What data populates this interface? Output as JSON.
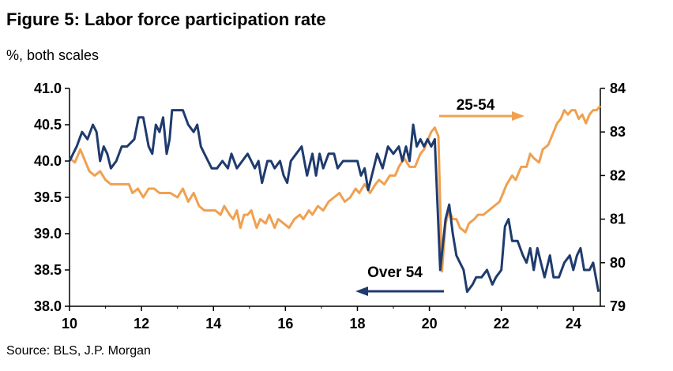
{
  "chart_data": {
    "type": "line",
    "title": "Figure 5: Labor force participation rate",
    "subtitle": "%, both scales",
    "source": "Source: BLS, J.P. Morgan",
    "x_ticks": [
      "10",
      "12",
      "14",
      "16",
      "18",
      "20",
      "22",
      "24"
    ],
    "x_range": [
      2010,
      2024.75
    ],
    "left_axis": {
      "range": [
        38.0,
        41.0
      ],
      "ticks": [
        "38.0",
        "38.5",
        "39.0",
        "39.5",
        "40.0",
        "40.5",
        "41.0"
      ]
    },
    "right_axis": {
      "range": [
        79,
        84
      ],
      "ticks": [
        "79",
        "80",
        "81",
        "82",
        "83",
        "84"
      ]
    },
    "grid": false,
    "annotations": [
      {
        "text": "25-54",
        "arrow": "right",
        "series": "25-54"
      },
      {
        "text": "Over 54",
        "arrow": "left",
        "series": "Over 54"
      }
    ],
    "series": [
      {
        "name": "Over 54",
        "axis": "left",
        "color": "#1f3b6e",
        "points": [
          [
            2010.0,
            40.0
          ],
          [
            2010.2,
            40.2
          ],
          [
            2010.35,
            40.4
          ],
          [
            2010.5,
            40.3
          ],
          [
            2010.65,
            40.5
          ],
          [
            2010.75,
            40.4
          ],
          [
            2010.85,
            40.0
          ],
          [
            2010.95,
            40.2
          ],
          [
            2011.05,
            40.1
          ],
          [
            2011.15,
            39.9
          ],
          [
            2011.3,
            40.0
          ],
          [
            2011.45,
            40.2
          ],
          [
            2011.6,
            40.2
          ],
          [
            2011.8,
            40.3
          ],
          [
            2011.92,
            40.6
          ],
          [
            2012.05,
            40.6
          ],
          [
            2012.2,
            40.2
          ],
          [
            2012.3,
            40.1
          ],
          [
            2012.4,
            40.5
          ],
          [
            2012.5,
            40.4
          ],
          [
            2012.6,
            40.6
          ],
          [
            2012.7,
            40.1
          ],
          [
            2012.78,
            40.3
          ],
          [
            2012.85,
            40.7
          ],
          [
            2013.0,
            40.7
          ],
          [
            2013.15,
            40.7
          ],
          [
            2013.3,
            40.5
          ],
          [
            2013.45,
            40.4
          ],
          [
            2013.55,
            40.5
          ],
          [
            2013.65,
            40.2
          ],
          [
            2013.75,
            40.1
          ],
          [
            2013.85,
            40.0
          ],
          [
            2013.95,
            39.9
          ],
          [
            2014.1,
            39.9
          ],
          [
            2014.25,
            40.0
          ],
          [
            2014.4,
            39.9
          ],
          [
            2014.5,
            40.1
          ],
          [
            2014.65,
            39.9
          ],
          [
            2014.8,
            40.0
          ],
          [
            2014.95,
            40.1
          ],
          [
            2015.05,
            40.0
          ],
          [
            2015.15,
            39.9
          ],
          [
            2015.25,
            40.0
          ],
          [
            2015.35,
            39.7
          ],
          [
            2015.5,
            40.0
          ],
          [
            2015.6,
            40.0
          ],
          [
            2015.7,
            39.9
          ],
          [
            2015.85,
            40.0
          ],
          [
            2015.95,
            39.8
          ],
          [
            2016.05,
            39.7
          ],
          [
            2016.15,
            40.0
          ],
          [
            2016.3,
            40.1
          ],
          [
            2016.45,
            40.2
          ],
          [
            2016.6,
            39.8
          ],
          [
            2016.75,
            40.1
          ],
          [
            2016.85,
            39.8
          ],
          [
            2016.95,
            40.1
          ],
          [
            2017.05,
            39.9
          ],
          [
            2017.2,
            40.1
          ],
          [
            2017.35,
            40.1
          ],
          [
            2017.45,
            39.9
          ],
          [
            2017.6,
            40.0
          ],
          [
            2017.75,
            40.0
          ],
          [
            2017.9,
            40.0
          ],
          [
            2018.0,
            40.0
          ],
          [
            2018.1,
            39.8
          ],
          [
            2018.2,
            39.9
          ],
          [
            2018.3,
            39.6
          ],
          [
            2018.45,
            39.9
          ],
          [
            2018.55,
            40.1
          ],
          [
            2018.7,
            39.9
          ],
          [
            2018.85,
            40.2
          ],
          [
            2019.0,
            40.1
          ],
          [
            2019.15,
            40.2
          ],
          [
            2019.25,
            40.0
          ],
          [
            2019.35,
            40.2
          ],
          [
            2019.45,
            40.0
          ],
          [
            2019.55,
            40.5
          ],
          [
            2019.65,
            40.2
          ],
          [
            2019.75,
            40.3
          ],
          [
            2019.85,
            40.2
          ],
          [
            2019.95,
            40.3
          ],
          [
            2020.05,
            40.2
          ],
          [
            2020.15,
            40.3
          ],
          [
            2020.3,
            38.5
          ],
          [
            2020.45,
            39.2
          ],
          [
            2020.55,
            39.4
          ],
          [
            2020.65,
            39.0
          ],
          [
            2020.75,
            38.7
          ],
          [
            2020.85,
            38.6
          ],
          [
            2020.95,
            38.5
          ],
          [
            2021.05,
            38.2
          ],
          [
            2021.2,
            38.3
          ],
          [
            2021.3,
            38.4
          ],
          [
            2021.45,
            38.4
          ],
          [
            2021.6,
            38.5
          ],
          [
            2021.75,
            38.3
          ],
          [
            2021.85,
            38.4
          ],
          [
            2022.0,
            38.5
          ],
          [
            2022.1,
            39.1
          ],
          [
            2022.2,
            39.2
          ],
          [
            2022.3,
            38.9
          ],
          [
            2022.45,
            38.9
          ],
          [
            2022.6,
            38.7
          ],
          [
            2022.7,
            38.6
          ],
          [
            2022.8,
            38.8
          ],
          [
            2022.9,
            38.5
          ],
          [
            2023.0,
            38.8
          ],
          [
            2023.1,
            38.6
          ],
          [
            2023.2,
            38.4
          ],
          [
            2023.35,
            38.7
          ],
          [
            2023.45,
            38.4
          ],
          [
            2023.6,
            38.4
          ],
          [
            2023.75,
            38.6
          ],
          [
            2023.9,
            38.7
          ],
          [
            2024.0,
            38.5
          ],
          [
            2024.1,
            38.7
          ],
          [
            2024.2,
            38.8
          ],
          [
            2024.3,
            38.5
          ],
          [
            2024.45,
            38.5
          ],
          [
            2024.55,
            38.6
          ],
          [
            2024.7,
            38.2
          ]
        ]
      },
      {
        "name": "25-54",
        "axis": "right",
        "color": "#f0a050",
        "points": [
          [
            2010.0,
            82.4
          ],
          [
            2010.15,
            82.3
          ],
          [
            2010.3,
            82.6
          ],
          [
            2010.45,
            82.3
          ],
          [
            2010.55,
            82.1
          ],
          [
            2010.7,
            82.0
          ],
          [
            2010.85,
            82.1
          ],
          [
            2011.0,
            81.9
          ],
          [
            2011.15,
            81.8
          ],
          [
            2011.3,
            81.8
          ],
          [
            2011.5,
            81.8
          ],
          [
            2011.65,
            81.8
          ],
          [
            2011.75,
            81.6
          ],
          [
            2011.9,
            81.7
          ],
          [
            2012.05,
            81.5
          ],
          [
            2012.2,
            81.7
          ],
          [
            2012.35,
            81.7
          ],
          [
            2012.5,
            81.6
          ],
          [
            2012.65,
            81.6
          ],
          [
            2012.8,
            81.6
          ],
          [
            2013.0,
            81.5
          ],
          [
            2013.15,
            81.7
          ],
          [
            2013.3,
            81.4
          ],
          [
            2013.45,
            81.6
          ],
          [
            2013.6,
            81.3
          ],
          [
            2013.75,
            81.2
          ],
          [
            2013.9,
            81.2
          ],
          [
            2014.05,
            81.2
          ],
          [
            2014.2,
            81.1
          ],
          [
            2014.3,
            81.3
          ],
          [
            2014.45,
            81.1
          ],
          [
            2014.55,
            81.0
          ],
          [
            2014.65,
            81.2
          ],
          [
            2014.75,
            80.8
          ],
          [
            2014.85,
            81.1
          ],
          [
            2014.95,
            81.1
          ],
          [
            2015.05,
            81.2
          ],
          [
            2015.2,
            80.8
          ],
          [
            2015.3,
            81.0
          ],
          [
            2015.45,
            80.9
          ],
          [
            2015.55,
            81.1
          ],
          [
            2015.7,
            80.8
          ],
          [
            2015.8,
            81.0
          ],
          [
            2015.95,
            80.9
          ],
          [
            2016.1,
            80.8
          ],
          [
            2016.25,
            81.0
          ],
          [
            2016.4,
            81.1
          ],
          [
            2016.5,
            81.0
          ],
          [
            2016.65,
            81.2
          ],
          [
            2016.75,
            81.1
          ],
          [
            2016.9,
            81.3
          ],
          [
            2017.05,
            81.2
          ],
          [
            2017.2,
            81.4
          ],
          [
            2017.35,
            81.5
          ],
          [
            2017.5,
            81.6
          ],
          [
            2017.65,
            81.4
          ],
          [
            2017.8,
            81.5
          ],
          [
            2017.95,
            81.7
          ],
          [
            2018.05,
            81.6
          ],
          [
            2018.2,
            81.8
          ],
          [
            2018.35,
            81.6
          ],
          [
            2018.5,
            81.8
          ],
          [
            2018.6,
            81.9
          ],
          [
            2018.75,
            81.8
          ],
          [
            2018.9,
            82.0
          ],
          [
            2019.05,
            82.0
          ],
          [
            2019.15,
            82.2
          ],
          [
            2019.3,
            82.4
          ],
          [
            2019.45,
            82.2
          ],
          [
            2019.6,
            82.2
          ],
          [
            2019.75,
            82.5
          ],
          [
            2019.85,
            82.6
          ],
          [
            2019.95,
            82.8
          ],
          [
            2020.05,
            83.0
          ],
          [
            2020.15,
            83.1
          ],
          [
            2020.25,
            82.9
          ],
          [
            2020.35,
            79.8
          ],
          [
            2020.45,
            80.9
          ],
          [
            2020.55,
            81.2
          ],
          [
            2020.65,
            81.0
          ],
          [
            2020.75,
            81.0
          ],
          [
            2020.85,
            80.8
          ],
          [
            2021.0,
            80.7
          ],
          [
            2021.1,
            80.9
          ],
          [
            2021.25,
            81.0
          ],
          [
            2021.35,
            81.1
          ],
          [
            2021.5,
            81.1
          ],
          [
            2021.65,
            81.2
          ],
          [
            2021.8,
            81.3
          ],
          [
            2021.95,
            81.4
          ],
          [
            2022.05,
            81.6
          ],
          [
            2022.15,
            81.8
          ],
          [
            2022.3,
            82.0
          ],
          [
            2022.4,
            81.9
          ],
          [
            2022.55,
            82.2
          ],
          [
            2022.7,
            82.2
          ],
          [
            2022.8,
            82.5
          ],
          [
            2022.9,
            82.4
          ],
          [
            2023.05,
            82.3
          ],
          [
            2023.15,
            82.6
          ],
          [
            2023.3,
            82.7
          ],
          [
            2023.45,
            83.0
          ],
          [
            2023.55,
            83.2
          ],
          [
            2023.65,
            83.3
          ],
          [
            2023.75,
            83.5
          ],
          [
            2023.85,
            83.4
          ],
          [
            2023.95,
            83.5
          ],
          [
            2024.05,
            83.5
          ],
          [
            2024.15,
            83.3
          ],
          [
            2024.25,
            83.4
          ],
          [
            2024.35,
            83.2
          ],
          [
            2024.45,
            83.4
          ],
          [
            2024.55,
            83.5
          ],
          [
            2024.65,
            83.5
          ],
          [
            2024.75,
            83.6
          ]
        ]
      }
    ]
  }
}
